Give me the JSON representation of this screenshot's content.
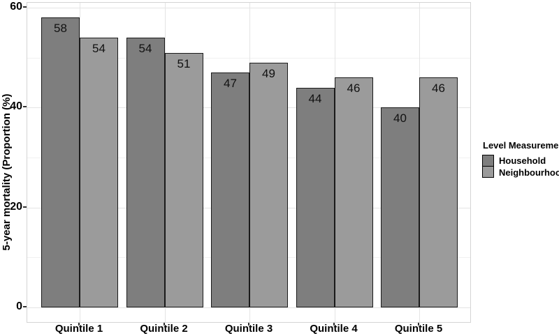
{
  "chart_data": {
    "type": "bar",
    "title": "",
    "categories": [
      "Quintile 1",
      "Quintile 2",
      "Quintile 3",
      "Quintile 4",
      "Quintile 5"
    ],
    "series": [
      {
        "name": "Household",
        "color": "#7e7e7e",
        "values": [
          58,
          54,
          47,
          44,
          40
        ]
      },
      {
        "name": "Neighbourhood",
        "color": "#9b9b9b",
        "values": [
          54,
          51,
          49,
          46,
          46
        ]
      }
    ],
    "xlabel": "",
    "ylabel": "5-year mortality (Proportion (%)",
    "ylim": [
      0,
      60
    ],
    "yticks": [
      0,
      20,
      40,
      60
    ],
    "yminor": [
      10,
      30,
      50
    ],
    "grid": true,
    "bar_value_labels": true,
    "legend_title": "Level Measurement",
    "legend_position": "right"
  },
  "colors": {
    "bar_border": "#1a1a1a",
    "grid_major": "#e4e4e4",
    "grid_minor": "#f1f1f1",
    "panel_border": "#d4d4d4",
    "text": "#000000",
    "background": "#ffffff"
  }
}
